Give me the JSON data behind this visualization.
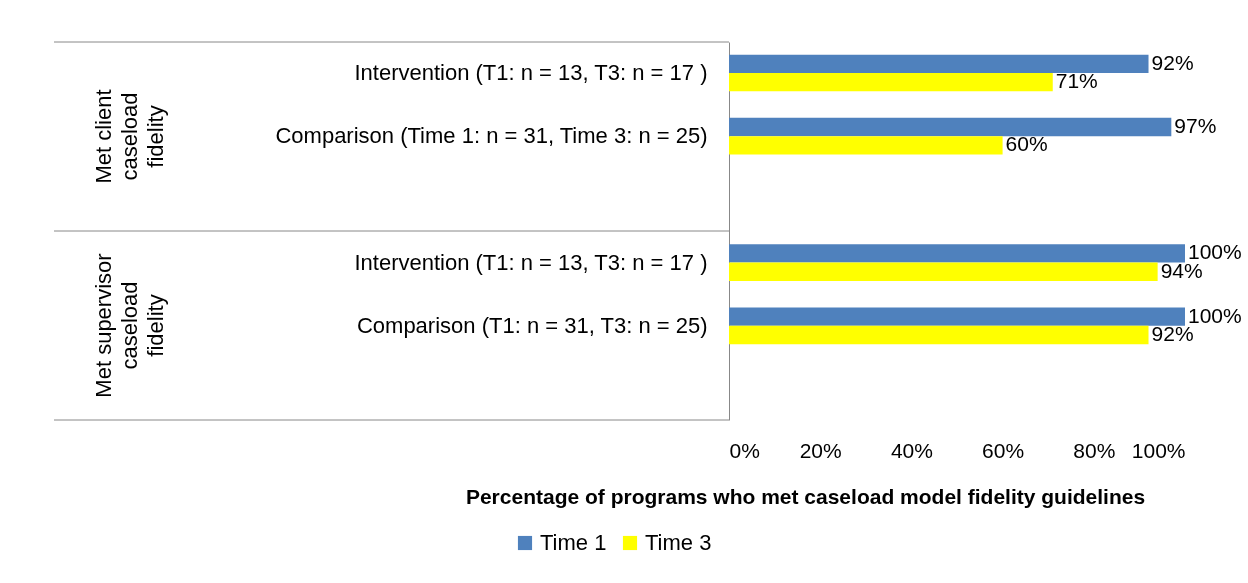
{
  "chart_data": {
    "type": "bar",
    "orientation": "horizontal",
    "xlabel": "Percentage of programs who met caseload model fidelity guidelines",
    "categories": [
      "Intervention (T1: n = 13, T3: n = 17 )",
      "Comparison (Time 1: n =  31, Time 3: n = 25)",
      "Intervention (T1: n = 13, T3: n = 17 )",
      "Comparison (T1: n = 31, T3: n = 25)"
    ],
    "annotations": [
      "Met client caseload fidelity",
      "Met supervisor caseload fidelity"
    ],
    "series": [
      {
        "name": "Time 1",
        "color": "#4f81bd",
        "values": [
          92,
          97,
          100,
          100
        ],
        "value_labels": [
          "92%",
          "97%",
          "100%",
          "100%"
        ]
      },
      {
        "name": "Time 3",
        "color": "#ffff00",
        "values": [
          71,
          60,
          94,
          92
        ],
        "value_labels": [
          "71%",
          "60%",
          "94%",
          "92%"
        ]
      }
    ],
    "xlim": [
      0,
      100
    ],
    "xticks": [
      {
        "value": 0,
        "label": "0%"
      },
      {
        "value": 20,
        "label": "20%"
      },
      {
        "value": 40,
        "label": "40%"
      },
      {
        "value": 60,
        "label": "60%"
      },
      {
        "value": 80,
        "label": "80%"
      },
      {
        "value": 100,
        "label": "100%"
      }
    ],
    "grid": false,
    "legend": "bottom"
  }
}
